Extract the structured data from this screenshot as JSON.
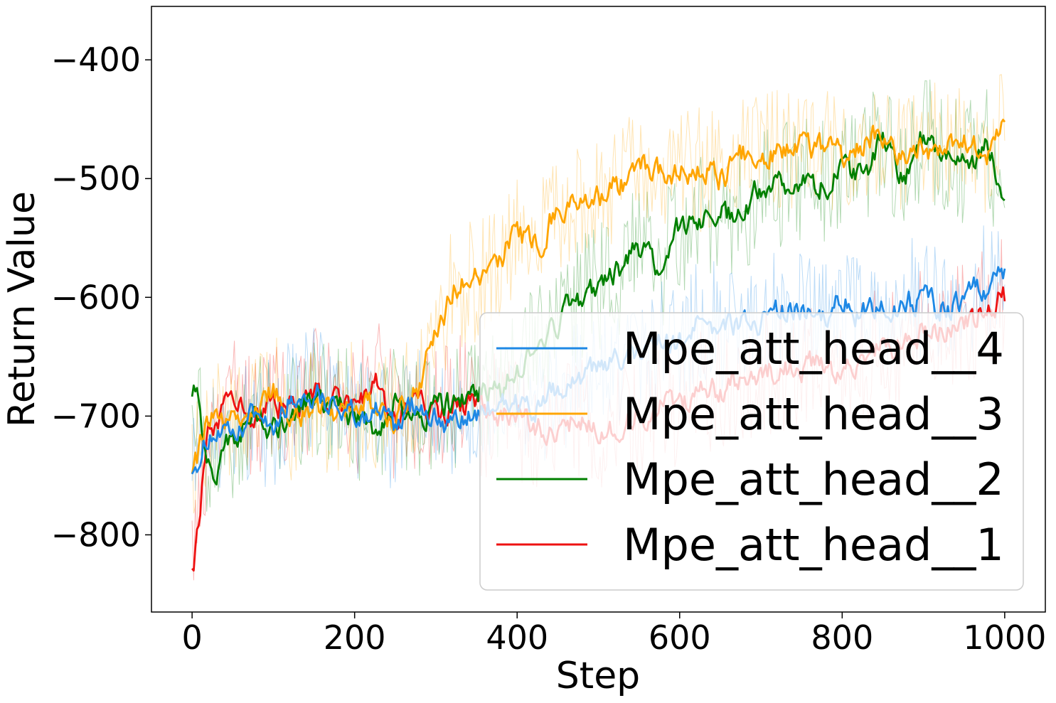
{
  "chart_data": {
    "type": "line",
    "title": "",
    "xlabel": "Step",
    "ylabel": "Return Value",
    "xlim": [
      -50,
      1050
    ],
    "ylim": [
      -865,
      -355
    ],
    "xticks": [
      0,
      200,
      400,
      600,
      800,
      1000
    ],
    "yticks": [
      -800,
      -700,
      -600,
      -500,
      -400
    ],
    "xtick_labels": [
      "0",
      "200",
      "400",
      "600",
      "800",
      "1000"
    ],
    "ytick_labels": [
      "−800",
      "−700",
      "−600",
      "−500",
      "−400"
    ],
    "legend_position": "lower-right",
    "grid": false,
    "series": [
      {
        "name": "Mpe_att_head__4",
        "color": "#1e88e5",
        "x": [
          0,
          25,
          50,
          75,
          100,
          125,
          150,
          175,
          200,
          225,
          250,
          275,
          300,
          325,
          350,
          375,
          400,
          425,
          450,
          475,
          500,
          525,
          550,
          575,
          600,
          625,
          650,
          675,
          700,
          725,
          750,
          775,
          800,
          825,
          850,
          875,
          900,
          925,
          950,
          975,
          1000
        ],
        "smoothed": [
          -740,
          -715,
          -720,
          -700,
          -705,
          -685,
          -680,
          -690,
          -700,
          -695,
          -710,
          -690,
          -700,
          -710,
          -700,
          -690,
          -690,
          -695,
          -680,
          -670,
          -660,
          -655,
          -645,
          -640,
          -640,
          -615,
          -625,
          -620,
          -620,
          -610,
          -615,
          -620,
          -605,
          -615,
          -610,
          -605,
          -600,
          -610,
          -600,
          -590,
          -575
        ],
        "raw_spread": [
          40,
          45,
          55,
          50,
          60,
          55,
          55,
          50,
          55,
          50,
          55,
          50,
          50,
          55,
          45,
          50,
          50,
          50,
          55,
          50,
          55,
          55,
          55,
          55,
          55,
          55,
          55,
          50,
          55,
          55,
          55,
          55,
          55,
          55,
          55,
          55,
          55,
          55,
          55,
          55,
          50
        ]
      },
      {
        "name": "Mpe_att_head__3",
        "color": "#ffa500",
        "x": [
          0,
          25,
          50,
          75,
          100,
          125,
          150,
          175,
          200,
          225,
          250,
          275,
          300,
          325,
          350,
          375,
          400,
          425,
          450,
          475,
          500,
          525,
          550,
          575,
          600,
          625,
          650,
          675,
          700,
          725,
          750,
          775,
          800,
          825,
          850,
          875,
          900,
          925,
          950,
          975,
          1000
        ],
        "smoothed": [
          -740,
          -700,
          -705,
          -695,
          -680,
          -700,
          -695,
          -700,
          -690,
          -690,
          -700,
          -680,
          -630,
          -590,
          -585,
          -565,
          -550,
          -555,
          -525,
          -520,
          -515,
          -505,
          -490,
          -495,
          -495,
          -490,
          -500,
          -480,
          -480,
          -475,
          -470,
          -475,
          -480,
          -470,
          -465,
          -480,
          -475,
          -470,
          -470,
          -480,
          -455
        ],
        "raw_spread": [
          50,
          50,
          55,
          50,
          55,
          55,
          50,
          50,
          55,
          55,
          55,
          50,
          55,
          55,
          55,
          55,
          50,
          50,
          55,
          50,
          50,
          55,
          55,
          50,
          50,
          55,
          55,
          50,
          50,
          55,
          55,
          50,
          50,
          50,
          55,
          50,
          50,
          55,
          55,
          50,
          45
        ]
      },
      {
        "name": "Mpe_att_head__2",
        "color": "#008000",
        "x": [
          0,
          25,
          50,
          75,
          100,
          125,
          150,
          175,
          200,
          225,
          250,
          275,
          300,
          325,
          350,
          375,
          400,
          425,
          450,
          475,
          500,
          525,
          550,
          575,
          600,
          625,
          650,
          675,
          700,
          725,
          750,
          775,
          800,
          825,
          850,
          875,
          900,
          925,
          950,
          975,
          1000
        ],
        "smoothed": [
          -675,
          -750,
          -715,
          -700,
          -710,
          -695,
          -690,
          -690,
          -700,
          -710,
          -690,
          -705,
          -690,
          -690,
          -680,
          -680,
          -660,
          -640,
          -620,
          -600,
          -590,
          -580,
          -560,
          -575,
          -540,
          -535,
          -530,
          -530,
          -505,
          -505,
          -500,
          -505,
          -495,
          -495,
          -470,
          -495,
          -465,
          -480,
          -490,
          -475,
          -510
        ],
        "raw_spread": [
          50,
          55,
          55,
          55,
          55,
          55,
          55,
          55,
          55,
          55,
          55,
          55,
          55,
          55,
          55,
          55,
          55,
          55,
          55,
          55,
          55,
          55,
          55,
          55,
          55,
          55,
          55,
          55,
          55,
          55,
          55,
          55,
          55,
          55,
          55,
          55,
          55,
          55,
          55,
          55,
          50
        ]
      },
      {
        "name": "Mpe_att_head__1",
        "color": "#ee1111",
        "x": [
          0,
          25,
          50,
          75,
          100,
          125,
          150,
          175,
          200,
          225,
          250,
          275,
          300,
          325,
          350,
          375,
          400,
          425,
          450,
          475,
          500,
          525,
          550,
          575,
          600,
          625,
          650,
          675,
          700,
          725,
          750,
          775,
          800,
          825,
          850,
          875,
          900,
          925,
          950,
          975,
          1000
        ],
        "smoothed": [
          -820,
          -705,
          -690,
          -700,
          -690,
          -695,
          -680,
          -690,
          -690,
          -670,
          -705,
          -690,
          -700,
          -690,
          -695,
          -700,
          -700,
          -710,
          -710,
          -705,
          -715,
          -710,
          -700,
          -690,
          -690,
          -680,
          -680,
          -670,
          -665,
          -660,
          -660,
          -655,
          -660,
          -655,
          -640,
          -640,
          -630,
          -625,
          -620,
          -610,
          -600
        ],
        "raw_spread": [
          45,
          55,
          55,
          55,
          55,
          55,
          55,
          55,
          60,
          60,
          60,
          55,
          55,
          60,
          55,
          55,
          55,
          55,
          55,
          55,
          55,
          55,
          55,
          55,
          55,
          55,
          55,
          55,
          55,
          55,
          55,
          55,
          55,
          55,
          55,
          55,
          55,
          55,
          55,
          55,
          50
        ]
      }
    ]
  }
}
